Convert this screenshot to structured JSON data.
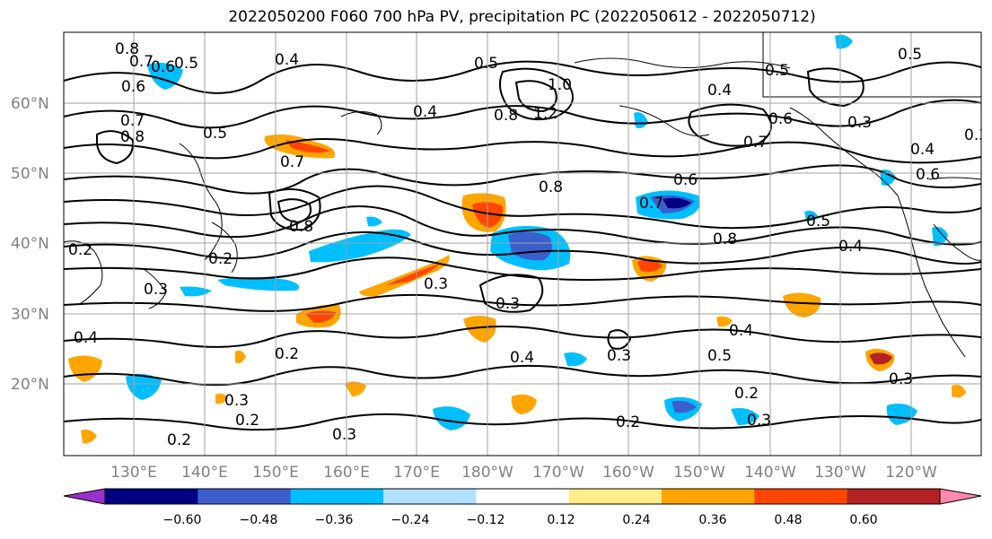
{
  "title": "2022050200 F060 700 hPa PV, precipitation PC (2022050612 - 2022050712)",
  "lat_labels": [
    "60°N",
    "50°N",
    "40°N",
    "30°N",
    "20°N"
  ],
  "lon_labels": [
    "130°E",
    "140°E",
    "150°E",
    "160°E",
    "170°E",
    "180°W",
    "170°W",
    "160°W",
    "150°W",
    "140°W",
    "130°W",
    "120°W"
  ],
  "contour_labels": [
    "0.8",
    "0.7",
    "0.6",
    "0.5",
    "0.4",
    "0.6",
    "0.7",
    "0.8",
    "0.5",
    "0.7",
    "0.4",
    "0.5",
    "0.8",
    "1.2",
    "1.0",
    "0.8",
    "0.4",
    "0.5",
    "0.6",
    "0.7",
    "0.3",
    "0.5",
    "0.3",
    "0.4",
    "0.6",
    "0.8",
    "0.7",
    "0.6",
    "0.8",
    "0.5",
    "0.4",
    "0.2",
    "0.3",
    "0.2",
    "0.3",
    "0.3",
    "0.4",
    "0.4",
    "0.2",
    "0.3",
    "0.2",
    "0.2",
    "0.3",
    "0.4",
    "0.5",
    "0.2",
    "0.3",
    "0.2",
    "0.3",
    "0.3"
  ],
  "colorbar": {
    "ticks": [
      "−0.60",
      "−0.48",
      "−0.36",
      "−0.24",
      "−0.12",
      "0.12",
      "0.24",
      "0.36",
      "0.48",
      "0.60"
    ],
    "colors": [
      "#9932cc",
      "#000080",
      "#3a5fcd",
      "#00bfff",
      "#b0e2ff",
      "#ffffff",
      "#ffec8b",
      "#ffa500",
      "#ff4500",
      "#b22222",
      "#ff88b0"
    ]
  }
}
